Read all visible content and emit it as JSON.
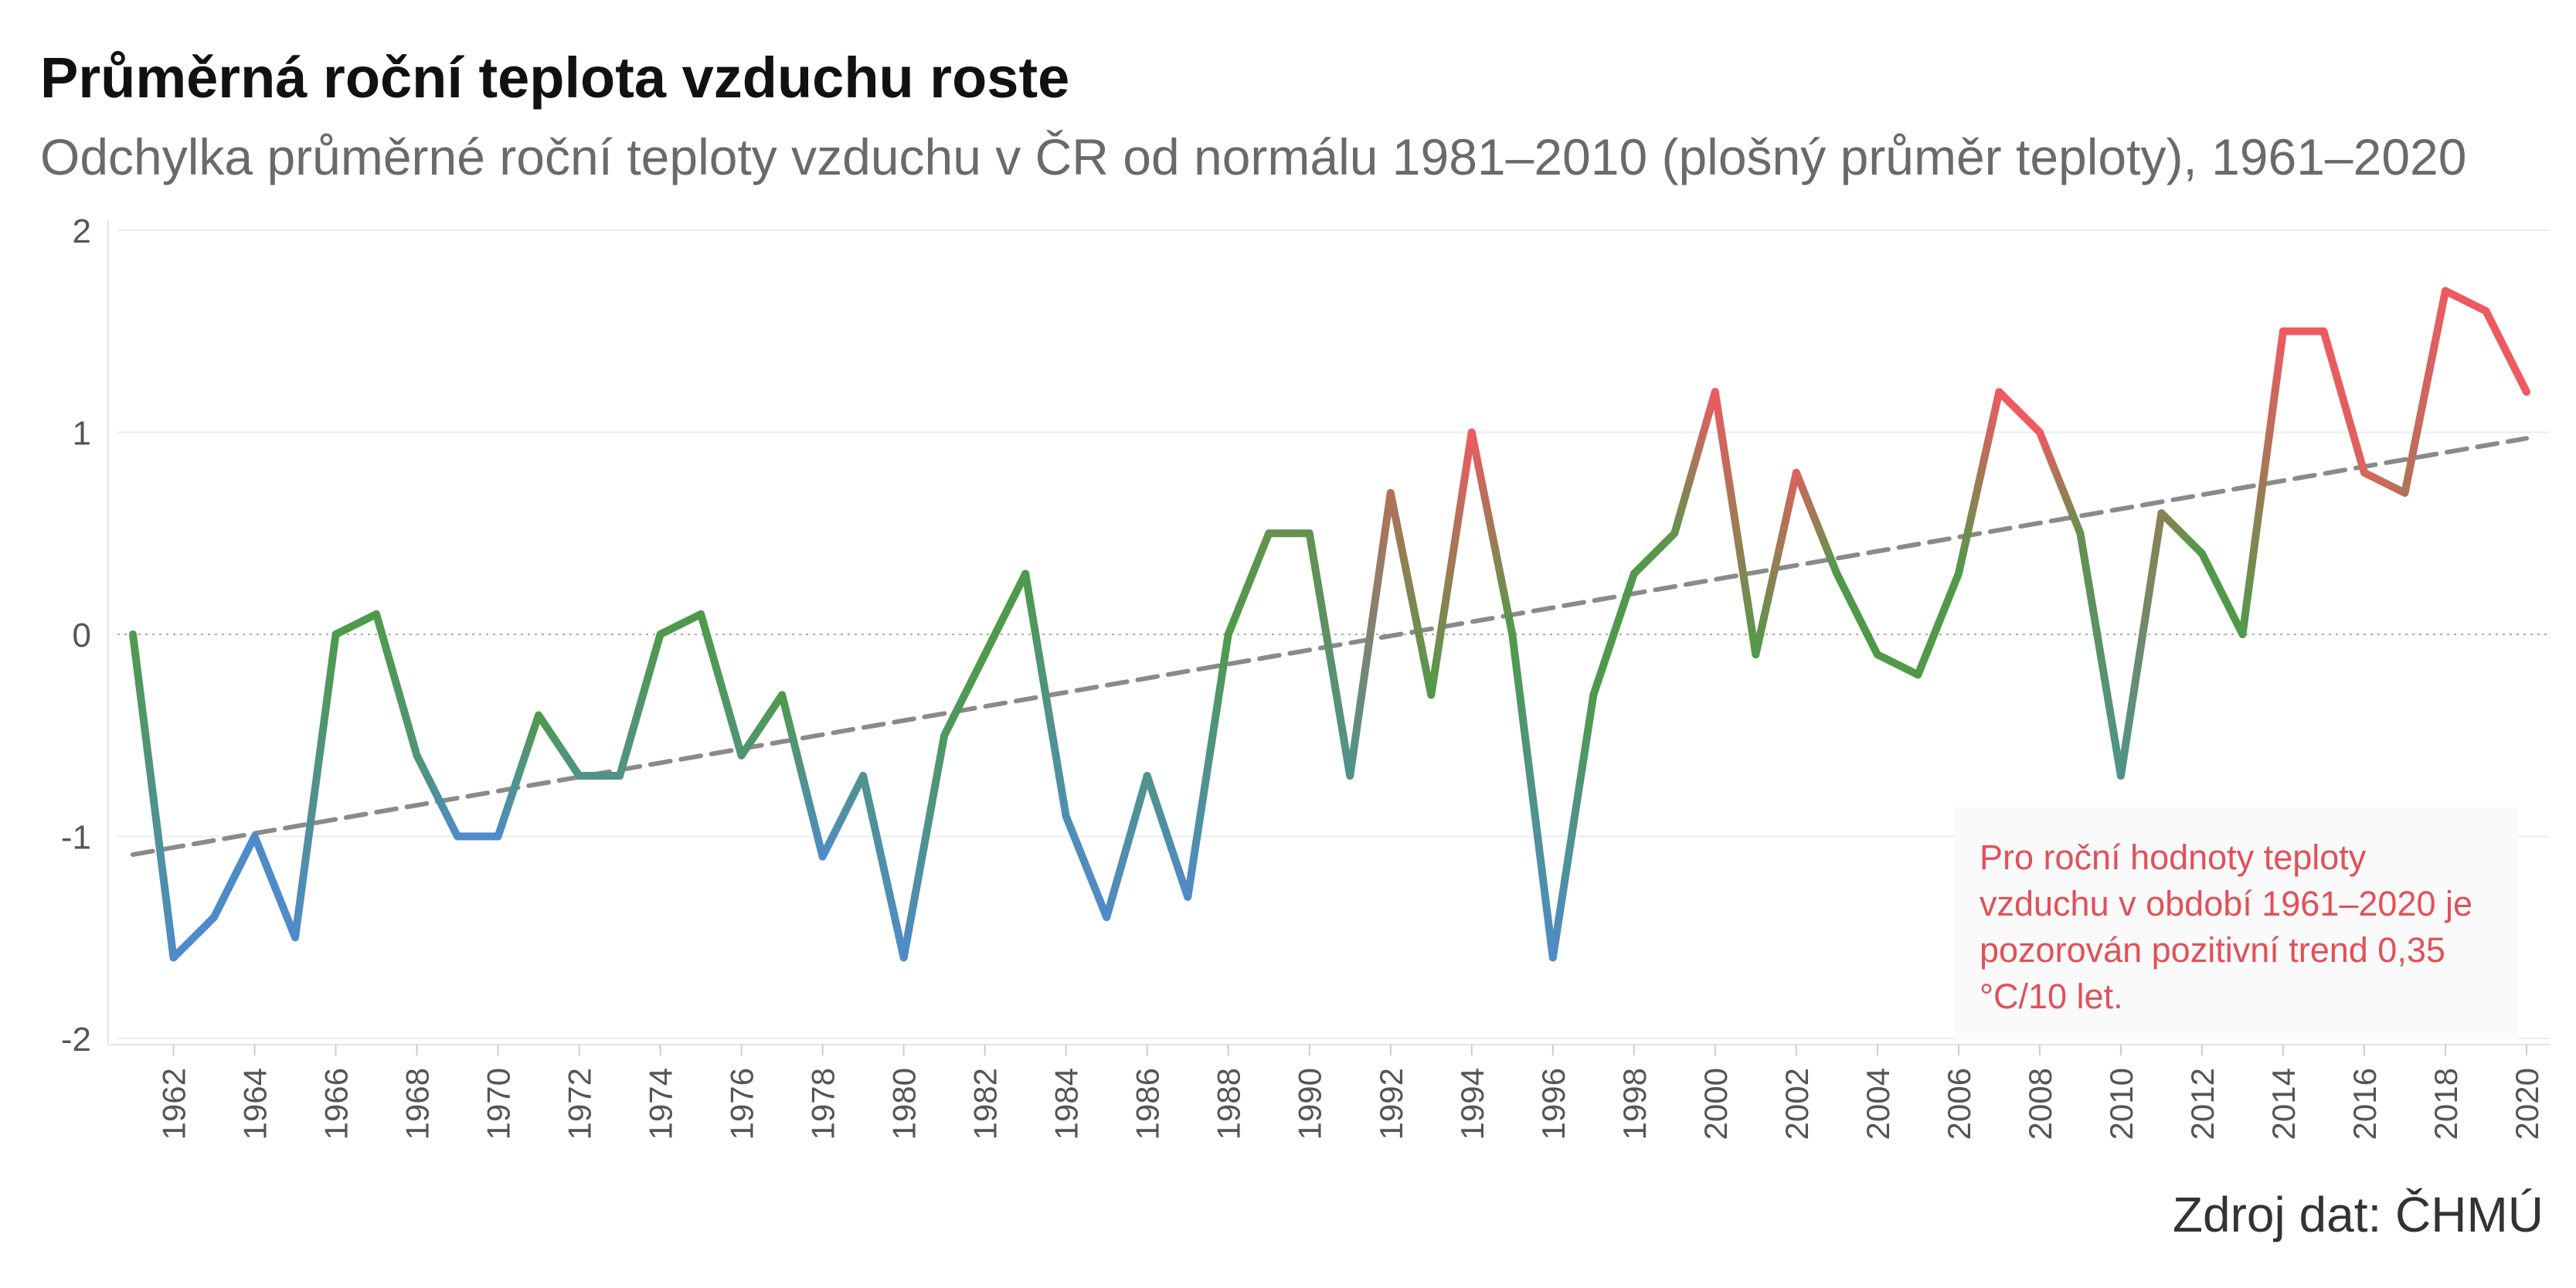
{
  "chart_data": {
    "type": "line",
    "title": "Průměrná roční teplota vzduchu roste",
    "subtitle": "Odchylka průměrné roční teploty vzduchu v ČR od normálu 1981–2010 (plošný průměr teploty), 1961–2020",
    "xlabel": "",
    "ylabel": "",
    "xlim": [
      1961,
      2020
    ],
    "ylim": [
      -2,
      2
    ],
    "y_ticks": [
      "2",
      "1",
      "0",
      "-1",
      "-2"
    ],
    "x_ticks": [
      "1962",
      "1964",
      "1966",
      "1968",
      "1970",
      "1972",
      "1974",
      "1976",
      "1978",
      "1980",
      "1982",
      "1984",
      "1986",
      "1988",
      "1990",
      "1992",
      "1994",
      "1996",
      "1998",
      "2000",
      "2002",
      "2004",
      "2006",
      "2008",
      "2010",
      "2012",
      "2014",
      "2016",
      "2018",
      "2020"
    ],
    "grid": true,
    "series": [
      {
        "x": [
          1961,
          1962,
          1963,
          1964,
          1965,
          1966,
          1967,
          1968,
          1969,
          1970,
          1971,
          1972,
          1973,
          1974,
          1975,
          1976,
          1977,
          1978,
          1979,
          1980,
          1981,
          1982,
          1983,
          1984,
          1985,
          1986,
          1987,
          1988,
          1989,
          1990,
          1991,
          1992,
          1993,
          1994,
          1995,
          1996,
          1997,
          1998,
          1999,
          2000,
          2001,
          2002,
          2003,
          2004,
          2005,
          2006,
          2007,
          2008,
          2009,
          2010,
          2011,
          2012,
          2013,
          2014,
          2015,
          2016,
          2017,
          2018,
          2019,
          2020
        ],
        "values": [
          0.0,
          -1.6,
          -1.4,
          -1.0,
          -1.5,
          0.0,
          0.1,
          -0.6,
          -1.0,
          -1.0,
          -0.4,
          -0.7,
          -0.7,
          0.0,
          0.1,
          -0.6,
          -0.3,
          -1.1,
          -0.7,
          -1.6,
          -0.5,
          -0.1,
          0.3,
          -0.9,
          -1.4,
          -0.7,
          -1.3,
          0.0,
          0.5,
          0.5,
          -0.7,
          0.7,
          -0.3,
          1.0,
          0.0,
          -1.6,
          -0.3,
          0.3,
          0.5,
          1.2,
          -0.1,
          0.8,
          0.3,
          -0.1,
          -0.2,
          0.3,
          1.2,
          1.0,
          0.5,
          -0.7,
          0.6,
          0.4,
          0.0,
          1.5,
          1.5,
          0.8,
          0.7,
          1.7,
          1.6,
          1.2
        ],
        "color_scale": {
          "low": "#4f8bc9",
          "mid": "#4f9a4a",
          "high": "#ee5a60"
        }
      }
    ],
    "trend": {
      "label": "pozitivní trend",
      "x": [
        1961,
        2020
      ],
      "values": [
        -1.09,
        0.97
      ],
      "color": "#8a8a8a",
      "style": "dashed"
    },
    "zero_line": {
      "value": 0,
      "style": "dotted"
    },
    "annotation": "Pro roční hodnoty teploty vzduchu v období 1961–2020 je pozorován pozitivní trend 0,35 °C/10 let.",
    "annotation_color": "#e25059",
    "source": "Zdroj dat: ČHMÚ"
  }
}
